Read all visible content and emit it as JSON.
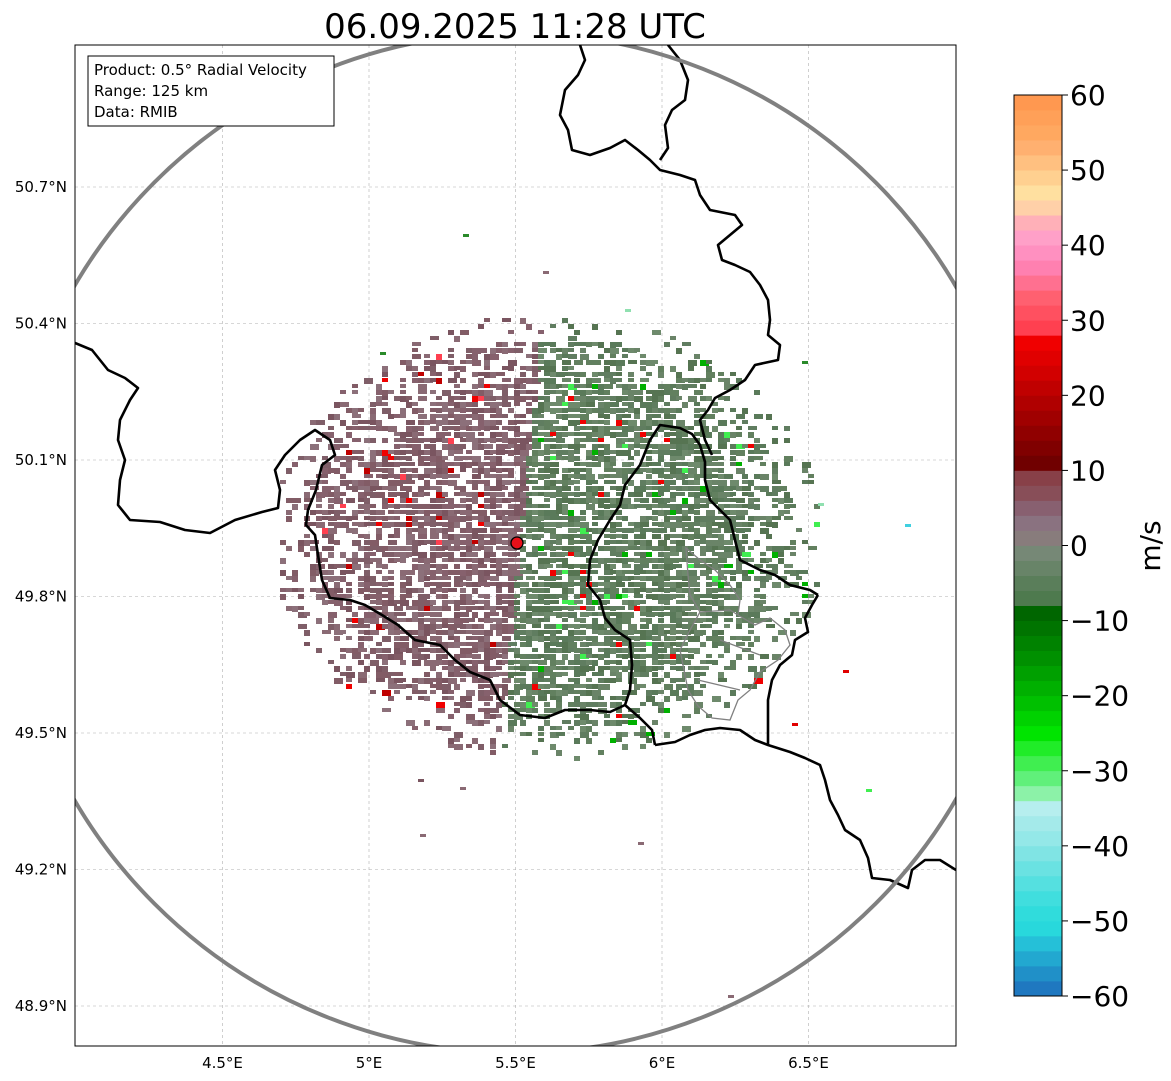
{
  "title": "06.09.2025 11:28 UTC",
  "info_box": {
    "product": "Product: 0.5° Radial Velocity",
    "range": "Range: 125 km",
    "data": "Data: RMIB"
  },
  "axes": {
    "lon_ticks": [
      {
        "value": 4.5,
        "label": "4.5°E"
      },
      {
        "value": 5.0,
        "label": "5°E"
      },
      {
        "value": 5.5,
        "label": "5.5°E"
      },
      {
        "value": 6.0,
        "label": "6°E"
      },
      {
        "value": 6.5,
        "label": "6.5°E"
      }
    ],
    "lat_ticks": [
      {
        "value": 50.7,
        "label": "50.7°N"
      },
      {
        "value": 50.4,
        "label": "50.4°N"
      },
      {
        "value": 50.1,
        "label": "50.1°N"
      },
      {
        "value": 49.8,
        "label": "49.8°N"
      },
      {
        "value": 49.5,
        "label": "49.5°N"
      },
      {
        "value": 49.2,
        "label": "49.2°N"
      },
      {
        "value": 48.9,
        "label": "48.9°N"
      }
    ],
    "lon_range": [
      4.0,
      7.0
    ],
    "lat_range": [
      48.8,
      51.0
    ]
  },
  "radar": {
    "site_lon": 5.505,
    "site_lat": 49.915,
    "range_km": 125,
    "site_color": "#e8101a",
    "range_ring_color": "#808080"
  },
  "colorbar": {
    "label": "m/s",
    "vmin": -60,
    "vmax": 60,
    "ticks": [
      {
        "value": 60,
        "label": "60"
      },
      {
        "value": 50,
        "label": "50"
      },
      {
        "value": 40,
        "label": "40"
      },
      {
        "value": 30,
        "label": "30"
      },
      {
        "value": 20,
        "label": "20"
      },
      {
        "value": 10,
        "label": "10"
      },
      {
        "value": 0,
        "label": "0"
      },
      {
        "value": -10,
        "label": "−10"
      },
      {
        "value": -20,
        "label": "−20"
      },
      {
        "value": -30,
        "label": "−30"
      },
      {
        "value": -40,
        "label": "−40"
      },
      {
        "value": -50,
        "label": "−50"
      },
      {
        "value": -60,
        "label": "−60"
      }
    ],
    "bands": [
      {
        "from": -60,
        "to": -58,
        "color": "#1f78c0"
      },
      {
        "from": -58,
        "to": -56,
        "color": "#2090c8"
      },
      {
        "from": -56,
        "to": -54,
        "color": "#22a8d0"
      },
      {
        "from": -54,
        "to": -52,
        "color": "#25c0d8"
      },
      {
        "from": -52,
        "to": -50,
        "color": "#28d8dc"
      },
      {
        "from": -50,
        "to": -48,
        "color": "#30dcdc"
      },
      {
        "from": -48,
        "to": -46,
        "color": "#40dede"
      },
      {
        "from": -46,
        "to": -44,
        "color": "#55e0e0"
      },
      {
        "from": -44,
        "to": -42,
        "color": "#6ae2e2"
      },
      {
        "from": -42,
        "to": -40,
        "color": "#80e4e4"
      },
      {
        "from": -40,
        "to": -38,
        "color": "#94e8e8"
      },
      {
        "from": -38,
        "to": -36,
        "color": "#a4eaea"
      },
      {
        "from": -36,
        "to": -34,
        "color": "#b6eeee"
      },
      {
        "from": -34,
        "to": -32,
        "color": "#8cf2a8"
      },
      {
        "from": -32,
        "to": -30,
        "color": "#60f07a"
      },
      {
        "from": -30,
        "to": -28,
        "color": "#40ee50"
      },
      {
        "from": -28,
        "to": -26,
        "color": "#20ec28"
      },
      {
        "from": -26,
        "to": -24,
        "color": "#00e400"
      },
      {
        "from": -24,
        "to": -22,
        "color": "#00d200"
      },
      {
        "from": -22,
        "to": -20,
        "color": "#00c000"
      },
      {
        "from": -20,
        "to": -18,
        "color": "#00b000"
      },
      {
        "from": -18,
        "to": -16,
        "color": "#00a000"
      },
      {
        "from": -16,
        "to": -14,
        "color": "#009000"
      },
      {
        "from": -14,
        "to": -12,
        "color": "#008200"
      },
      {
        "from": -12,
        "to": -10,
        "color": "#007400"
      },
      {
        "from": -10,
        "to": -8,
        "color": "#006600"
      },
      {
        "from": -8,
        "to": -6,
        "color": "#4e7a4e"
      },
      {
        "from": -6,
        "to": -4,
        "color": "#5a7e5a"
      },
      {
        "from": -4,
        "to": -2,
        "color": "#688468"
      },
      {
        "from": -2,
        "to": 0,
        "color": "#768876"
      },
      {
        "from": 0,
        "to": 2,
        "color": "#887c7c"
      },
      {
        "from": 2,
        "to": 4,
        "color": "#8a7280"
      },
      {
        "from": 4,
        "to": 6,
        "color": "#886070"
      },
      {
        "from": 6,
        "to": 8,
        "color": "#884e58"
      },
      {
        "from": 8,
        "to": 10,
        "color": "#884048"
      },
      {
        "from": 10,
        "to": 12,
        "color": "#700000"
      },
      {
        "from": 12,
        "to": 14,
        "color": "#800000"
      },
      {
        "from": 14,
        "to": 16,
        "color": "#900000"
      },
      {
        "from": 16,
        "to": 18,
        "color": "#a00000"
      },
      {
        "from": 18,
        "to": 20,
        "color": "#b00000"
      },
      {
        "from": 20,
        "to": 22,
        "color": "#c00000"
      },
      {
        "from": 22,
        "to": 24,
        "color": "#d20000"
      },
      {
        "from": 24,
        "to": 26,
        "color": "#e00000"
      },
      {
        "from": 26,
        "to": 28,
        "color": "#f00000"
      },
      {
        "from": 28,
        "to": 30,
        "color": "#ff4050"
      },
      {
        "from": 30,
        "to": 32,
        "color": "#ff5060"
      },
      {
        "from": 32,
        "to": 34,
        "color": "#ff6070"
      },
      {
        "from": 34,
        "to": 36,
        "color": "#ff7090"
      },
      {
        "from": 36,
        "to": 38,
        "color": "#ff80b0"
      },
      {
        "from": 38,
        "to": 40,
        "color": "#ff90c0"
      },
      {
        "from": 40,
        "to": 42,
        "color": "#ffa0c8"
      },
      {
        "from": 42,
        "to": 44,
        "color": "#ffb0b8"
      },
      {
        "from": 44,
        "to": 46,
        "color": "#ffd0a8"
      },
      {
        "from": 46,
        "to": 48,
        "color": "#ffe0a0"
      },
      {
        "from": 48,
        "to": 50,
        "color": "#ffd090"
      },
      {
        "from": 50,
        "to": 52,
        "color": "#ffc080"
      },
      {
        "from": 52,
        "to": 54,
        "color": "#ffb070"
      },
      {
        "from": 54,
        "to": 56,
        "color": "#ffa860"
      },
      {
        "from": 56,
        "to": 58,
        "color": "#ffa058"
      },
      {
        "from": 58,
        "to": 60,
        "color": "#ff9850"
      }
    ]
  },
  "colors": {
    "inbound_green": "#5a7a5a",
    "outbound_brown": "#7f5e68",
    "border": "#000000",
    "admin_border": "#808080",
    "gridline": "#b0b0b0"
  }
}
